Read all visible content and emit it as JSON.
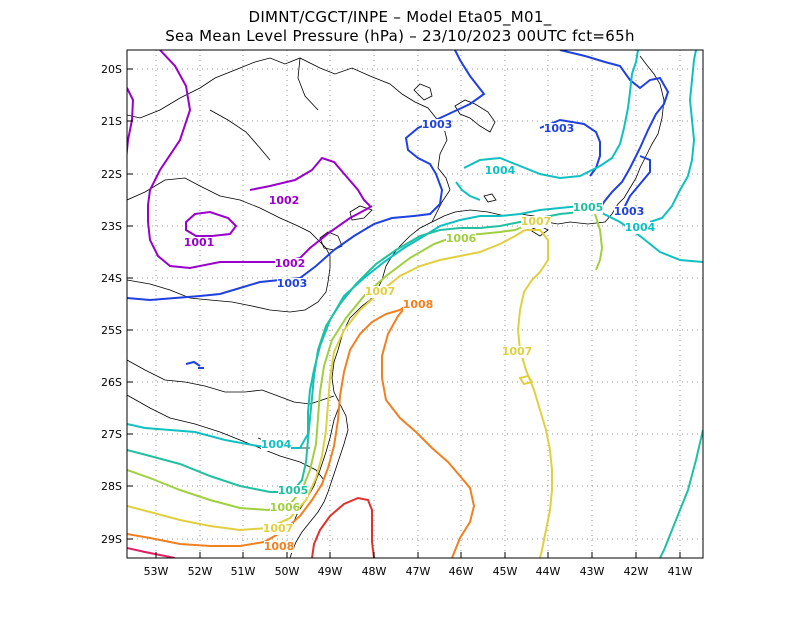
{
  "title": {
    "line1": "DIMNT/CGCT/INPE –  Model Eta05_M01_",
    "line2": "Sea Mean Level Pressure (hPa) – 23/10/2023 00UTC fct=65h"
  },
  "axes": {
    "lat_labels": [
      "20S",
      "21S",
      "22S",
      "23S",
      "24S",
      "25S",
      "26S",
      "27S",
      "28S",
      "29S"
    ],
    "lon_labels": [
      "53W",
      "52W",
      "51W",
      "50W",
      "49W",
      "48W",
      "47W",
      "46W",
      "45W",
      "44W",
      "43W",
      "42W",
      "41W"
    ]
  },
  "colors": {
    "c1001": "#9900cc",
    "c1002": "#9900cc",
    "c1003": "#2040e0",
    "c1004": "#10c0c0",
    "c1005": "#20c0a0",
    "c1006": "#a0d040",
    "c1007": "#e0d040",
    "c1008": "#f08020",
    "c1009": "#e03030",
    "c1010": "#e02060",
    "coast": "#000000",
    "grid": "#999999"
  },
  "contour_labels": [
    {
      "text": "1001",
      "level": "c1001"
    },
    {
      "text": "1002",
      "level": "c1002"
    },
    {
      "text": "1002",
      "level": "c1002"
    },
    {
      "text": "1003",
      "level": "c1003"
    },
    {
      "text": "1003",
      "level": "c1003"
    },
    {
      "text": "1003",
      "level": "c1003"
    },
    {
      "text": "1003",
      "level": "c1003"
    },
    {
      "text": "1004",
      "level": "c1004"
    },
    {
      "text": "1004",
      "level": "c1004"
    },
    {
      "text": "1004",
      "level": "c1004"
    },
    {
      "text": "1005",
      "level": "c1005"
    },
    {
      "text": "1005",
      "level": "c1005"
    },
    {
      "text": "1006",
      "level": "c1006"
    },
    {
      "text": "1006",
      "level": "c1006"
    },
    {
      "text": "1007",
      "level": "c1007"
    },
    {
      "text": "1007",
      "level": "c1007"
    },
    {
      "text": "1007",
      "level": "c1007"
    },
    {
      "text": "1007",
      "level": "c1007"
    },
    {
      "text": "1008",
      "level": "c1008"
    },
    {
      "text": "1008",
      "level": "c1008"
    }
  ]
}
